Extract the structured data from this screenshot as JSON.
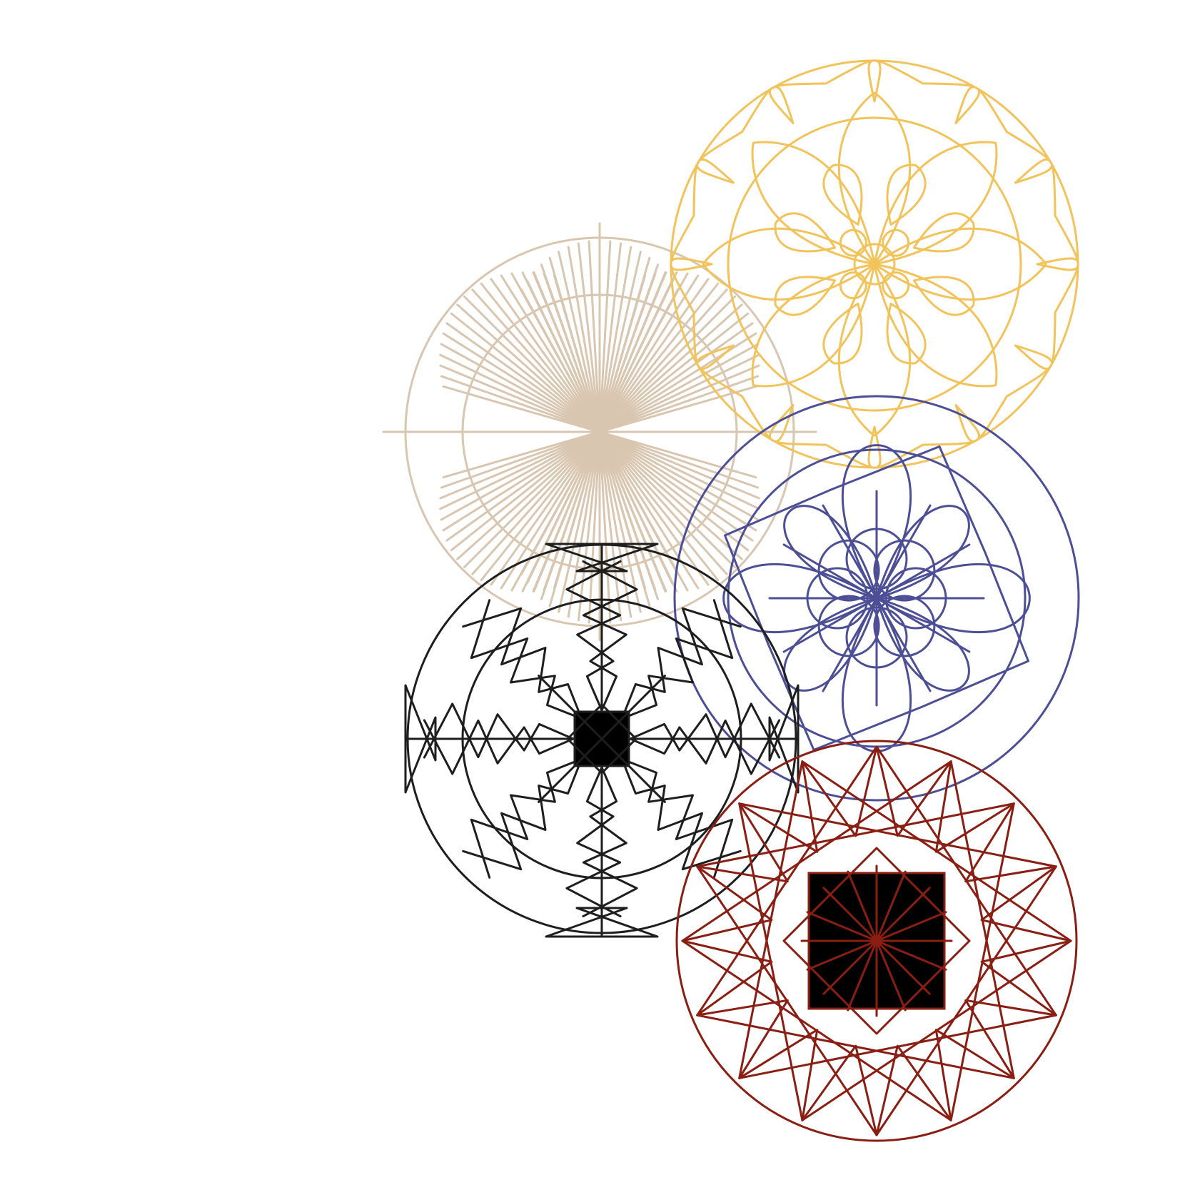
{
  "figure": {
    "background": "#ffffff",
    "rosettes": [
      {
        "name": "sunburst-rosette",
        "motif": "ray-bundles",
        "color": "#d8c6b0"
      },
      {
        "name": "heart-rosette",
        "motif": "heart-petals",
        "color": "#f2c35a"
      },
      {
        "name": "loop-rosette",
        "motif": "looped-petals",
        "color": "#4d4f96"
      },
      {
        "name": "arrow-rosette",
        "motif": "arrow-lattice",
        "color": "#1e1e1e"
      },
      {
        "name": "star-rosette",
        "motif": "sixteen-point-star",
        "color": "#8a1e12"
      }
    ]
  }
}
